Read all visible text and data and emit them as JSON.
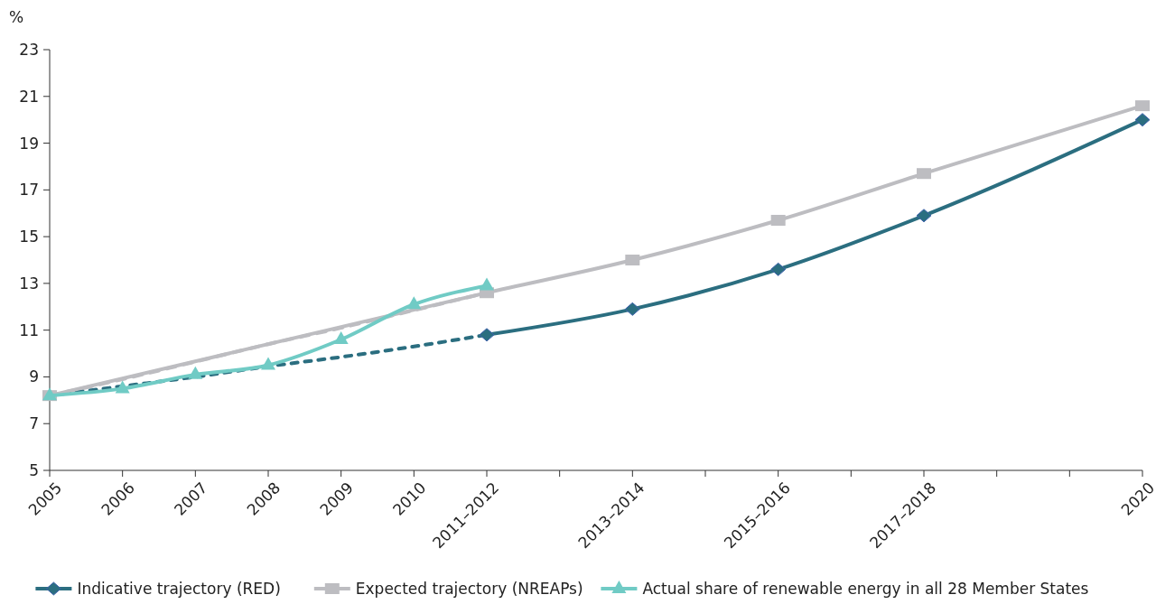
{
  "chart_data": {
    "type": "line",
    "ylabel": "%",
    "categories": [
      "2005",
      "2006",
      "2007",
      "2008",
      "2009",
      "2010",
      "2011–2012",
      null,
      "2013–2014",
      null,
      "2015–2016",
      null,
      "2017–2018",
      null,
      null,
      "2020"
    ],
    "series": [
      {
        "color": "#bdbdc1",
        "line_style": "dashed",
        "marker": "none",
        "values": [
          8.2,
          8.9,
          9.65,
          10.4,
          11.1,
          11.85,
          12.6,
          null,
          null,
          null,
          null,
          null,
          null,
          null,
          null,
          null
        ]
      },
      {
        "color": "#2b6e80",
        "line_style": "dotted",
        "marker": "none",
        "values": [
          8.2,
          8.6,
          9.0,
          9.45,
          9.85,
          10.3,
          10.8,
          null,
          null,
          null,
          null,
          null,
          null,
          null,
          null,
          null
        ]
      },
      {
        "name": "Indicative trajectory (RED)",
        "color": "#2b6e80",
        "line_style": "solid",
        "marker": "diamond",
        "values": [
          null,
          null,
          null,
          null,
          null,
          null,
          10.8,
          null,
          11.9,
          null,
          13.6,
          null,
          15.9,
          null,
          null,
          20.0
        ]
      },
      {
        "name": "Expected trajectory (NREAPs)",
        "color": "#bdbdc1",
        "line_style": "solid",
        "marker": "square",
        "values": [
          8.2,
          null,
          null,
          null,
          null,
          null,
          12.6,
          null,
          14.0,
          null,
          15.7,
          null,
          17.7,
          null,
          null,
          20.6
        ]
      },
      {
        "name": "Actual share of renewable energy in all 28 Member States",
        "color": "#70cbc5",
        "line_style": "solid",
        "marker": "triangle",
        "values": [
          8.2,
          8.5,
          9.1,
          9.5,
          10.6,
          12.1,
          12.9,
          null,
          null,
          null,
          null,
          null,
          null,
          null,
          null,
          null
        ]
      }
    ],
    "ylim": [
      5,
      23
    ],
    "yticks": [
      5,
      7,
      9,
      11,
      13,
      15,
      17,
      19,
      21,
      23
    ],
    "grid": false,
    "legend": "bottom"
  }
}
